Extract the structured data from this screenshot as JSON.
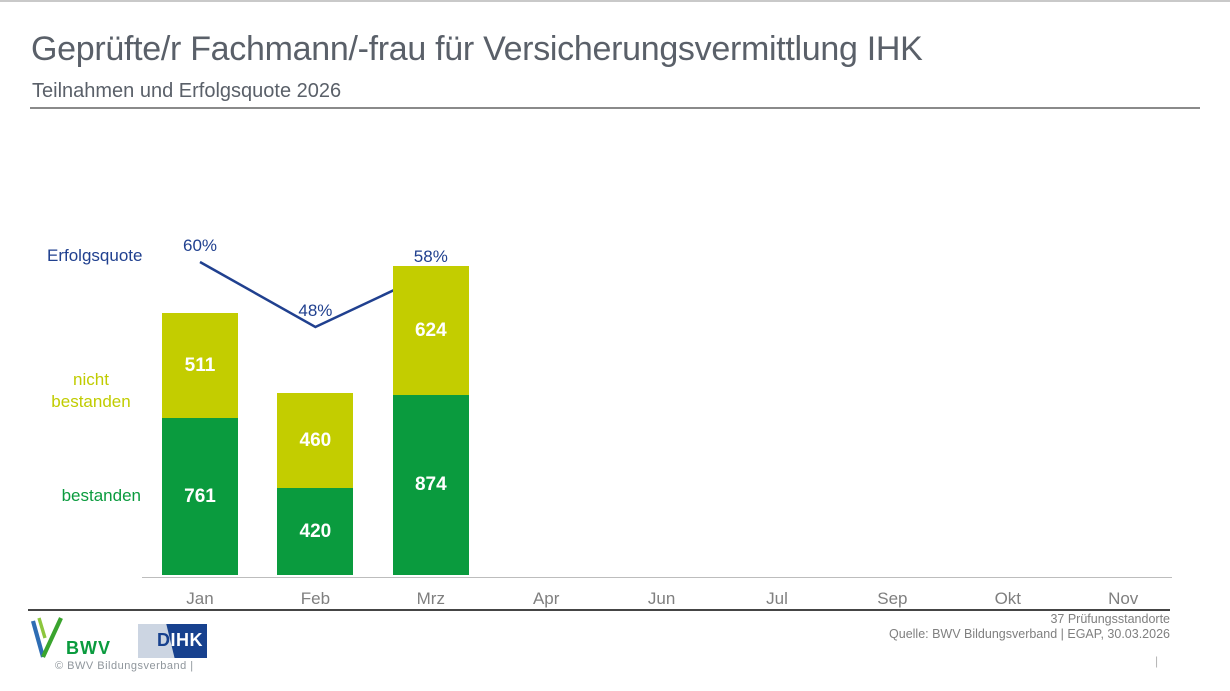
{
  "header": {
    "title": "Geprüfte/r Fachmann/-frau für Versicherungsvermittlung IHK",
    "subtitle": "Teilnahmen und Erfolgsquote 2026"
  },
  "chart_data": {
    "type": "bar",
    "subtype": "stacked-columns-with-line",
    "categories": [
      "Jan",
      "Feb",
      "Mrz",
      "Apr",
      "Jun",
      "Jul",
      "Sep",
      "Okt",
      "Nov"
    ],
    "series": [
      {
        "name": "bestanden",
        "type": "bar",
        "color": "#0a9b3e",
        "values": [
          761,
          420,
          874,
          null,
          null,
          null,
          null,
          null,
          null
        ]
      },
      {
        "name": "nicht bestanden",
        "type": "bar",
        "color": "#c3cd00",
        "values": [
          511,
          460,
          624,
          null,
          null,
          null,
          null,
          null,
          null
        ]
      },
      {
        "name": "Erfolgsquote",
        "type": "line",
        "color": "#20408f",
        "unit": "%",
        "values": [
          60,
          48,
          58,
          null,
          null,
          null,
          null,
          null,
          null
        ]
      }
    ],
    "totals": [
      1272,
      880,
      1498
    ],
    "title": "Teilnahmen und Erfolgsquote 2026",
    "xlabel": "",
    "ylabel": "",
    "grid": false,
    "legend_position": "left",
    "value_labels": "white-inside-segments",
    "line_labels_format": "percent-above-points"
  },
  "legend": {
    "erfolgsquote": "Erfolgsquote",
    "nicht_bestanden": "nicht\nbestanden",
    "bestanden": "bestanden"
  },
  "footer": {
    "bwv_logo_text": "BWV",
    "dihk_logo_d": "D",
    "dihk_logo_ihk": "IHK",
    "copyright": "©  BWV Bildungsverband  |",
    "standorte": "37 Prüfungsstandorte",
    "quelle": "Quelle: BWV Bildungsverband | EGAP, 30.03.2026",
    "page_separator": "|"
  },
  "colors": {
    "green": "#0a9b3e",
    "yellow_green": "#c3cd00",
    "navy": "#20408f",
    "title_gray": "#5a6069",
    "label_gray": "#7f7f7f"
  }
}
